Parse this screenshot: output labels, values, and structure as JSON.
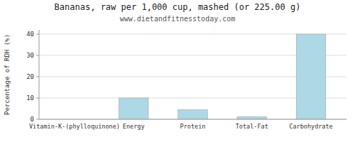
{
  "chart_data": {
    "type": "bar",
    "title": "Bananas, raw per 1,000 cup, mashed (or 225.00 g)",
    "subtitle": "www.dietandfitnesstoday.com",
    "categories": [
      "Vitamin-K-(phylloquinone)",
      "Energy",
      "Protein",
      "Total-Fat",
      "Carbohydrate"
    ],
    "values": [
      0,
      10,
      4.5,
      1.2,
      40
    ],
    "color": "#add8e6",
    "ylabel": "Percentage of RDH (%)",
    "ylim": [
      0,
      42
    ],
    "yticks": [
      0,
      10,
      20,
      30,
      40
    ],
    "grid": true
  }
}
